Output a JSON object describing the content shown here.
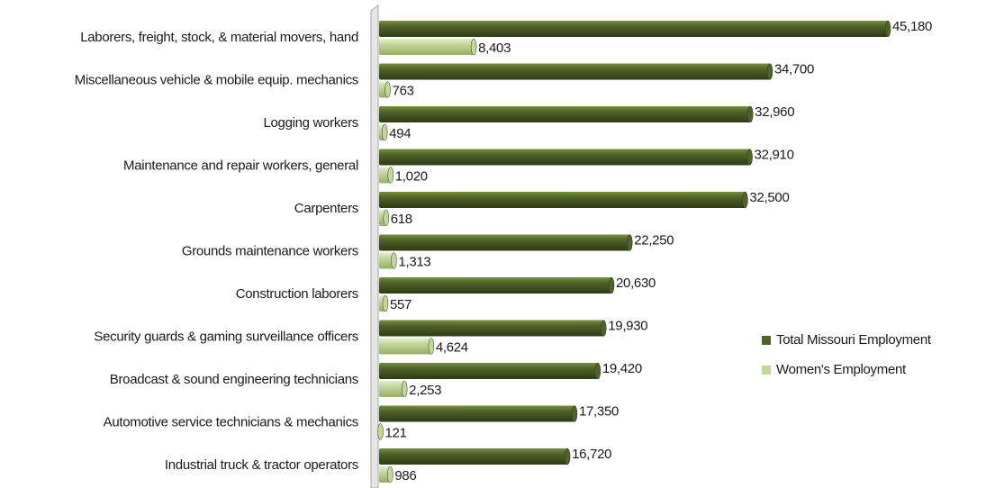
{
  "chart_data": {
    "type": "bar",
    "orientation": "horizontal",
    "categories": [
      "Laborers, freight, stock, & material movers, hand",
      "Miscellaneous vehicle & mobile equip. mechanics",
      "Logging workers",
      "Maintenance and repair workers, general",
      "Carpenters",
      "Grounds maintenance workers",
      "Construction laborers",
      "Security guards & gaming surveillance officers",
      "Broadcast & sound engineering technicians",
      "Automotive service technicians & mechanics",
      "Industrial truck & tractor operators"
    ],
    "series": [
      {
        "name": "Total Missouri Employment",
        "color": "#4f6228",
        "values": [
          45180,
          34700,
          32960,
          32910,
          32500,
          22250,
          20630,
          19930,
          19420,
          17350,
          16720
        ],
        "value_labels": [
          "45,180",
          "34,700",
          "32,960",
          "32,910",
          "32,500",
          "22,250",
          "20,630",
          "19,930",
          "19,420",
          "17,350",
          "16,720"
        ]
      },
      {
        "name": "Women's Employment",
        "color": "#c4d79b",
        "values": [
          8403,
          763,
          494,
          1020,
          618,
          1313,
          557,
          4624,
          2253,
          121,
          986
        ],
        "value_labels": [
          "8,403",
          "763",
          "494",
          "1,020",
          "618",
          "1,313",
          "557",
          "4,624",
          "2,253",
          "121",
          "986"
        ]
      }
    ],
    "legend": "right"
  }
}
